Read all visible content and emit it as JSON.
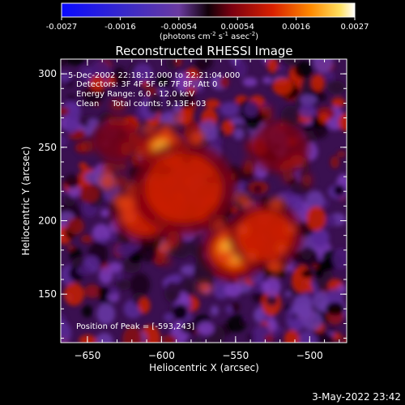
{
  "colorbar": {
    "tick_labels": [
      "-0.0027",
      "-0.0016",
      "-0.00054",
      "0.00054",
      "0.0016",
      "0.0027"
    ],
    "units_prefix": "(photons cm",
    "units_sup1": "-2",
    "units_mid": " s",
    "units_sup2": "-1",
    "units_mid2": " asec",
    "units_sup3": "-2",
    "units_suffix": ")"
  },
  "title": "Reconstructed RHESSI Image",
  "annotations": {
    "time_range": "5-Dec-2002 22:18:12.000 to 22:21:04.000",
    "detectors": "Detectors: 3F 4F 5F 6F 7F 8F, Att 0",
    "energy": "Energy Range: 6.0 - 12.0 keV",
    "clean": "Clean     Total counts: 9.13E+03",
    "peak": "Position of Peak = [-593,243]"
  },
  "axes": {
    "xlabel": "Heliocentric X (arcsec)",
    "ylabel": "Heliocentric Y (arcsec)",
    "x_ticks": [
      -650,
      -600,
      -550,
      -500
    ],
    "x_tick_labels": [
      "−650",
      "−600",
      "−550",
      "−500"
    ],
    "y_ticks": [
      150,
      200,
      250,
      300
    ],
    "y_tick_labels": [
      "150",
      "200",
      "250",
      "300"
    ],
    "xlim": [
      -668,
      -475
    ],
    "ylim": [
      117,
      310
    ]
  },
  "sources": [
    {
      "x": -599,
      "y": 248,
      "intensity": 0.85,
      "size": 11
    },
    {
      "x": -551,
      "y": 180,
      "intensity": 0.95,
      "size": 14
    },
    {
      "x": -611,
      "y": 205,
      "intensity": 0.45,
      "size": 14
    },
    {
      "x": -530,
      "y": 190,
      "intensity": 0.5,
      "size": 16
    },
    {
      "x": -585,
      "y": 222,
      "intensity": 0.35,
      "size": 22
    },
    {
      "x": -520,
      "y": 250,
      "intensity": 0.3,
      "size": 12
    },
    {
      "x": -630,
      "y": 255,
      "intensity": 0.25,
      "size": 10
    }
  ],
  "footer": {
    "timestamp": "3-May-2022 23:42"
  },
  "colors": {
    "background": "#000000",
    "text": "#ffffff"
  }
}
